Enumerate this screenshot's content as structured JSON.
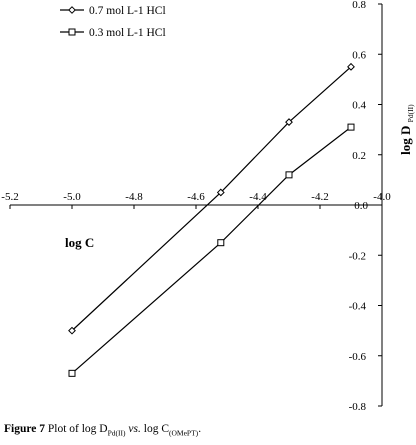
{
  "chart_data": {
    "type": "line",
    "title": "",
    "xlabel": "log C",
    "ylabel": {
      "main": "log D",
      "sub": "Pd(II)"
    },
    "xlim": [
      -5.2,
      -4.0
    ],
    "ylim": [
      -0.8,
      0.8
    ],
    "x_ticks": [
      "-5.2",
      "-5.0",
      "-4.8",
      "-4.6",
      "-4.4",
      "-4.2",
      "-4.0"
    ],
    "y_ticks": [
      "-0.8",
      "-0.6",
      "-0.4",
      "-0.2",
      "0.0",
      "0.2",
      "0.4",
      "0.6",
      "0.8"
    ],
    "grid": false,
    "legend_position": "top-left",
    "series": [
      {
        "name": "0.7 mol L-1 HCl",
        "marker": "diamond",
        "x": [
          -5.0,
          -4.52,
          -4.3,
          -4.1
        ],
        "y": [
          -0.5,
          0.05,
          0.33,
          0.55
        ]
      },
      {
        "name": "0.3 mol L-1 HCl",
        "marker": "square",
        "x": [
          -5.0,
          -4.52,
          -4.3,
          -4.1
        ],
        "y": [
          -0.67,
          -0.15,
          0.12,
          0.31
        ]
      }
    ]
  },
  "caption": {
    "figure_label": "Figure 7",
    "text_1": "Plot of log D",
    "sub_1": "Pd(II)",
    "vs": "vs.",
    "text_2": "log C",
    "sub_2": "(OMePT)",
    "end": "."
  }
}
